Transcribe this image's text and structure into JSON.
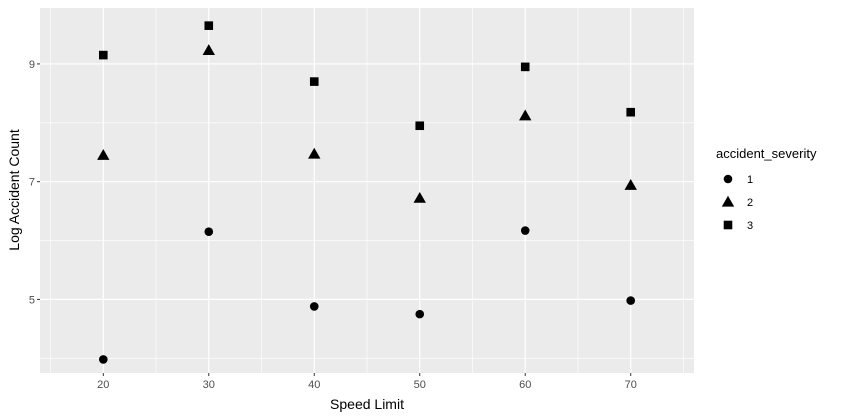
{
  "chart_data": {
    "type": "scatter",
    "xlabel": "Speed Limit",
    "ylabel": "Log Accident Count",
    "xlim": [
      14,
      76
    ],
    "ylim": [
      3.75,
      9.95
    ],
    "x_ticks": [
      20,
      30,
      40,
      50,
      60,
      70
    ],
    "y_ticks": [
      5,
      7,
      9
    ],
    "grid": true,
    "legend_title": "accident_severity",
    "legend_position": "right",
    "colors": {
      "panel": "#ebebeb",
      "grid": "#ffffff",
      "points": "#000000",
      "tick": "#333333"
    },
    "series": [
      {
        "name": "1",
        "shape": "circle",
        "x": [
          20,
          30,
          40,
          50,
          60,
          70
        ],
        "y": [
          3.98,
          6.15,
          4.88,
          4.75,
          6.17,
          4.98
        ]
      },
      {
        "name": "2",
        "shape": "triangle",
        "x": [
          20,
          30,
          40,
          50,
          60,
          70
        ],
        "y": [
          7.45,
          9.23,
          7.47,
          6.72,
          8.12,
          6.94
        ]
      },
      {
        "name": "3",
        "shape": "square",
        "x": [
          20,
          30,
          40,
          50,
          60,
          70
        ],
        "y": [
          9.15,
          9.65,
          8.7,
          7.95,
          8.95,
          8.18
        ]
      }
    ]
  }
}
